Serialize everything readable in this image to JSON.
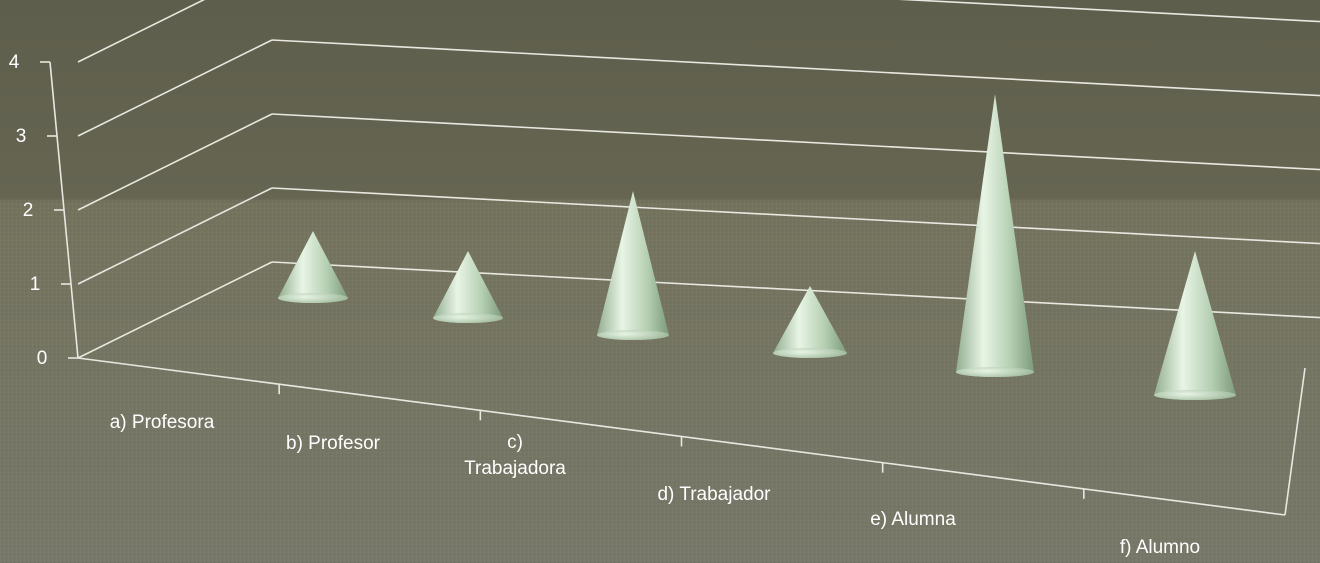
{
  "chart_data": {
    "type": "bar",
    "mark_shape": "cone",
    "projection": "3d",
    "categories": [
      "a)  Profesora",
      "b)  Profesor",
      "c)\nTrabajadora",
      "d)  Trabajador",
      "e)  Alumna",
      "f)  Alumno"
    ],
    "values": [
      1,
      1,
      2,
      1,
      4,
      2
    ],
    "title": "",
    "xlabel": "",
    "ylabel": "",
    "ylim": [
      0,
      4
    ],
    "yticks": [
      0,
      1,
      2,
      3,
      4
    ],
    "grid": true,
    "legend": "none",
    "colors": {
      "background_top": "#62624f",
      "background_bottom": "#74745f",
      "grid": "#e8e8e0",
      "cone_light": "#e6f3e3",
      "cone_mid": "#b9d3b6",
      "cone_dark": "#7e9c7e",
      "text": "#ffffff"
    }
  }
}
